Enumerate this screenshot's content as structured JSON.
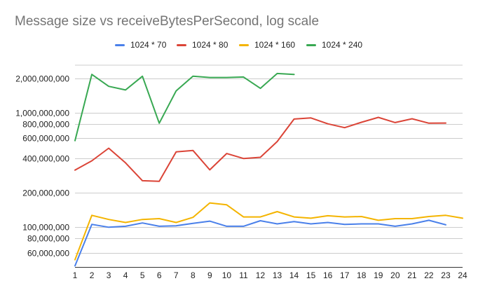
{
  "chart_data": {
    "type": "line",
    "title": "Message size vs receiveBytesPerSecond, log scale",
    "xlabel": "",
    "ylabel": "",
    "x": [
      1,
      2,
      3,
      4,
      5,
      6,
      7,
      8,
      9,
      10,
      11,
      12,
      13,
      14,
      15,
      16,
      17,
      18,
      19,
      20,
      21,
      22,
      23,
      24
    ],
    "y_scale": "log",
    "ylim": [
      45000000,
      2600000000
    ],
    "xlim": [
      1,
      24
    ],
    "yticks": [
      {
        "value": 60000000,
        "label": "60,000,000"
      },
      {
        "value": 80000000,
        "label": "80,000,000"
      },
      {
        "value": 100000000,
        "label": "100,000,000"
      },
      {
        "value": 200000000,
        "label": "200,000,000"
      },
      {
        "value": 400000000,
        "label": "400,000,000"
      },
      {
        "value": 600000000,
        "label": "600,000,000"
      },
      {
        "value": 800000000,
        "label": "800,000,000"
      },
      {
        "value": 1000000000,
        "label": "1,000,000,000"
      },
      {
        "value": 2000000000,
        "label": "2,000,000,000"
      }
    ],
    "grid": true,
    "legend_position": "top",
    "series": [
      {
        "name": "1024 * 70",
        "color": "#4a80ea",
        "values": [
          46000000,
          106000000,
          100000000,
          102000000,
          109000000,
          102000000,
          103000000,
          108000000,
          113000000,
          102000000,
          102000000,
          114000000,
          107000000,
          112000000,
          107000000,
          110000000,
          106000000,
          107000000,
          107000000,
          102000000,
          107000000,
          115000000,
          105000000,
          null
        ]
      },
      {
        "name": "1024 * 80",
        "color": "#db4437",
        "values": [
          315000000,
          380000000,
          490000000,
          365000000,
          255000000,
          252000000,
          455000000,
          468000000,
          317000000,
          440000000,
          398000000,
          408000000,
          560000000,
          880000000,
          900000000,
          800000000,
          740000000,
          825000000,
          910000000,
          820000000,
          885000000,
          810000000,
          812000000,
          null
        ]
      },
      {
        "name": "1024 * 160",
        "color": "#f4b400",
        "values": [
          52000000,
          127000000,
          117000000,
          110000000,
          117000000,
          119000000,
          110000000,
          122000000,
          163000000,
          157000000,
          123000000,
          123000000,
          137000000,
          123000000,
          120000000,
          126000000,
          123000000,
          124000000,
          115000000,
          119000000,
          119000000,
          124000000,
          127000000,
          120000000
        ]
      },
      {
        "name": "1024 * 240",
        "color": "#38a852",
        "values": [
          570000000,
          2160000000,
          1700000000,
          1580000000,
          2080000000,
          810000000,
          1550000000,
          2080000000,
          2030000000,
          2030000000,
          2050000000,
          1630000000,
          2200000000,
          2160000000,
          null,
          null,
          null,
          null,
          null,
          null,
          null,
          null,
          null,
          null
        ]
      }
    ]
  }
}
